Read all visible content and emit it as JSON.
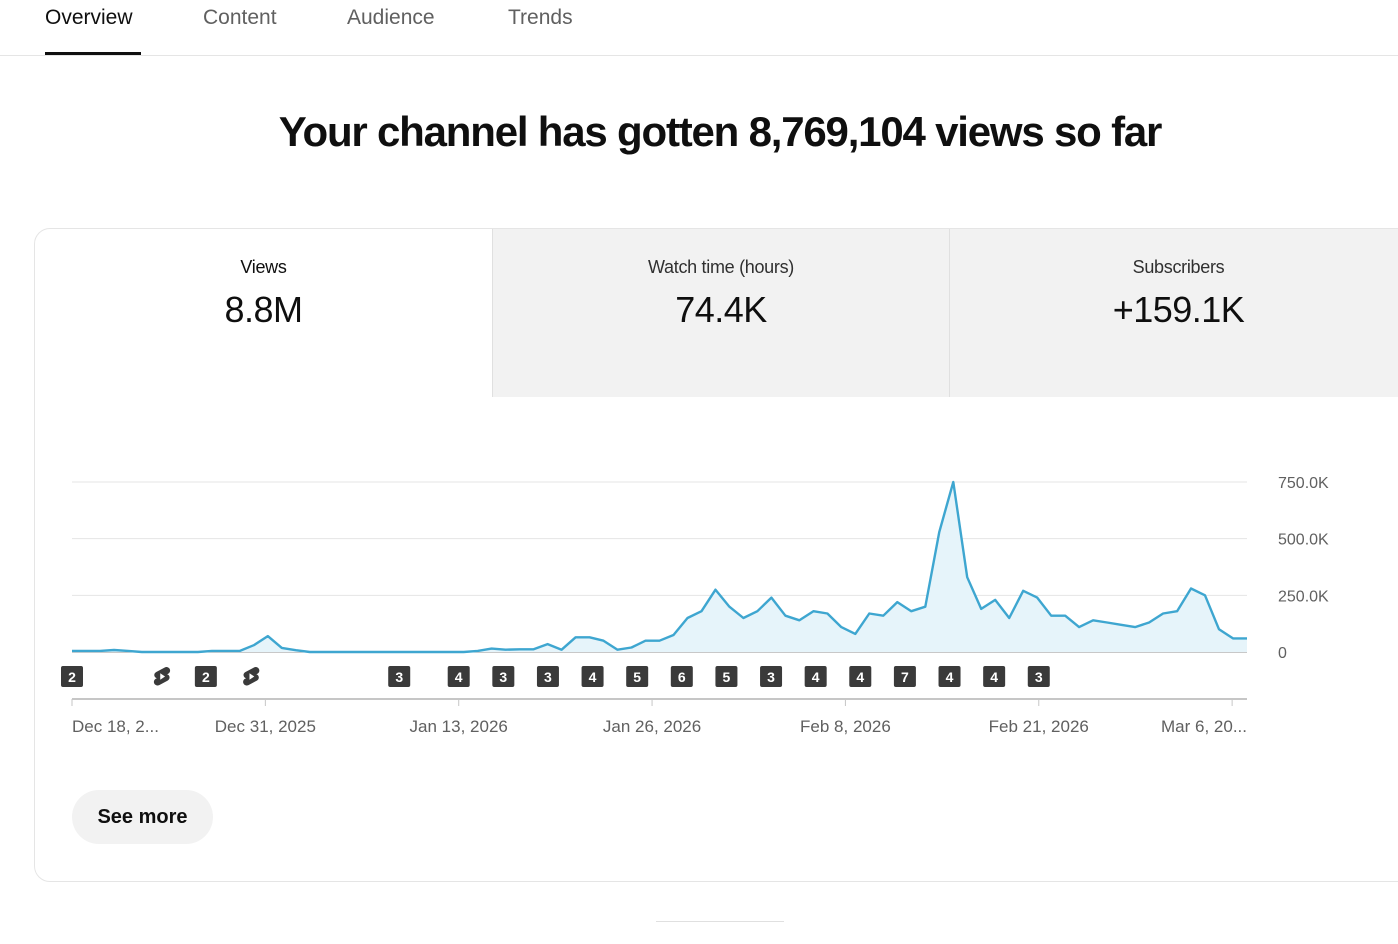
{
  "tabs": [
    {
      "label": "Overview",
      "active": true
    },
    {
      "label": "Content",
      "active": false
    },
    {
      "label": "Audience",
      "active": false
    },
    {
      "label": "Trends",
      "active": false
    }
  ],
  "headline": "Your channel has gotten 8,769,104 views so far",
  "metrics": [
    {
      "label": "Views",
      "value": "8.8M"
    },
    {
      "label": "Watch time (hours)",
      "value": "74.4K"
    },
    {
      "label": "Subscribers",
      "value": "+159.1K"
    }
  ],
  "see_more_label": "See more",
  "colors": {
    "line": "#3ea6d0",
    "fill": "#e6f4fa",
    "grid": "#e5e5e5",
    "axis_text": "#606060",
    "marker": "#3a3a3a"
  },
  "chart_data": {
    "type": "area",
    "x_range": [
      "2025-12-18",
      "2026-03-07"
    ],
    "ylim": [
      0,
      750000
    ],
    "y_ticks": [
      0,
      250000,
      500000,
      750000
    ],
    "y_tick_labels": [
      "0",
      "250.0K",
      "500.0K",
      "750.0K"
    ],
    "x_tick_labels": [
      "Dec 18, 2...",
      "Dec 31, 2025",
      "Jan 13, 2026",
      "Jan 26, 2026",
      "Feb 8, 2026",
      "Feb 21, 2026",
      "Mar 6, 20..."
    ],
    "x_tick_dates": [
      "2025-12-18",
      "2025-12-31",
      "2026-01-13",
      "2026-01-26",
      "2026-02-08",
      "2026-02-21",
      "2026-03-06"
    ],
    "values": [
      5000,
      5000,
      5000,
      9000,
      5000,
      0,
      0,
      0,
      0,
      0,
      5000,
      5000,
      5000,
      30000,
      70000,
      18000,
      8000,
      0,
      0,
      0,
      0,
      0,
      0,
      0,
      0,
      0,
      0,
      0,
      0,
      5000,
      15000,
      10000,
      12000,
      12000,
      35000,
      10000,
      65000,
      65000,
      50000,
      10000,
      20000,
      50000,
      50000,
      75000,
      150000,
      180000,
      275000,
      200000,
      150000,
      180000,
      240000,
      160000,
      140000,
      180000,
      170000,
      110000,
      80000,
      170000,
      160000,
      220000,
      180000,
      200000,
      530000,
      750000,
      330000,
      190000,
      230000,
      150000,
      270000,
      240000,
      160000,
      160000,
      110000,
      140000,
      130000,
      120000,
      110000,
      130000,
      170000,
      180000,
      280000,
      250000,
      100000,
      60000,
      60000
    ],
    "upload_markers": [
      {
        "date": "2025-12-18",
        "label": "2"
      },
      {
        "date": "2025-12-24",
        "type": "shorts"
      },
      {
        "date": "2025-12-27",
        "label": "2"
      },
      {
        "date": "2025-12-30",
        "type": "shorts"
      },
      {
        "date": "2026-01-09",
        "label": "3"
      },
      {
        "date": "2026-01-13",
        "label": "4"
      },
      {
        "date": "2026-01-16",
        "label": "3"
      },
      {
        "date": "2026-01-19",
        "label": "3"
      },
      {
        "date": "2026-01-22",
        "label": "4"
      },
      {
        "date": "2026-01-25",
        "label": "5"
      },
      {
        "date": "2026-01-28",
        "label": "6"
      },
      {
        "date": "2026-01-31",
        "label": "5"
      },
      {
        "date": "2026-02-03",
        "label": "3"
      },
      {
        "date": "2026-02-06",
        "label": "4"
      },
      {
        "date": "2026-02-09",
        "label": "4"
      },
      {
        "date": "2026-02-12",
        "label": "7"
      },
      {
        "date": "2026-02-15",
        "label": "4"
      },
      {
        "date": "2026-02-18",
        "label": "4"
      },
      {
        "date": "2026-02-21",
        "label": "3"
      }
    ]
  }
}
